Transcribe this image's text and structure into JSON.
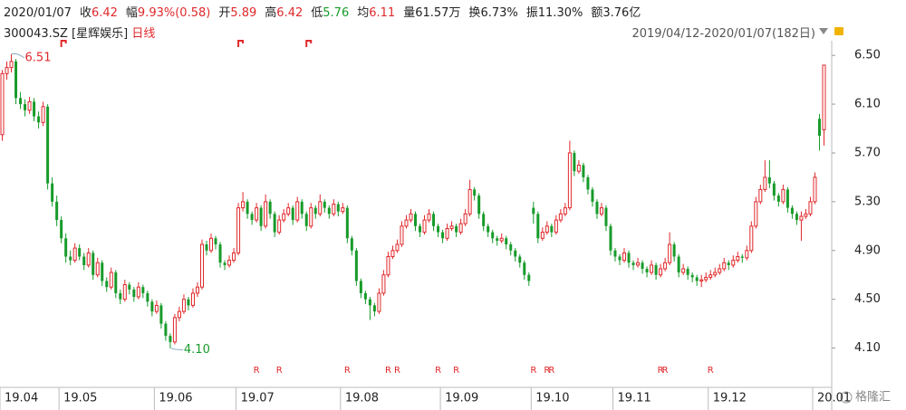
{
  "header": {
    "date": "2020/01/07",
    "fields": [
      {
        "label": "收",
        "value": "6.42",
        "color": "#e0282b"
      },
      {
        "label": "幅",
        "value": "9.93%(0.58)",
        "color": "#e0282b"
      },
      {
        "label": "开",
        "value": "5.89",
        "color": "#e0282b"
      },
      {
        "label": "高",
        "value": "6.42",
        "color": "#e0282b"
      },
      {
        "label": "低",
        "value": "5.76",
        "color": "#179b2a"
      },
      {
        "label": "均",
        "value": "6.11",
        "color": "#e0282b"
      },
      {
        "label": "量",
        "value": "61.57万",
        "color": "#222222"
      },
      {
        "label": "换",
        "value": "6.73%",
        "color": "#222222"
      },
      {
        "label": "振",
        "value": "11.30%",
        "color": "#222222"
      },
      {
        "label": "额",
        "value": "3.76亿",
        "color": "#222222"
      }
    ],
    "symbol": "300043.SZ [星辉娱乐]",
    "period": "日线",
    "range": "2019/04/12-2020/01/07(182日)",
    "watermark": "格隆汇"
  },
  "chart_data": {
    "type": "candlestick",
    "up_color": "#e0282b",
    "down_color": "#179b2a",
    "xlim": [
      0,
      182
    ],
    "ylim": [
      3.8,
      6.62
    ],
    "yticks": [
      {
        "value": 4.1,
        "label": "4.10"
      },
      {
        "value": 4.5,
        "label": "4.50"
      },
      {
        "value": 4.9,
        "label": "4.90"
      },
      {
        "value": 5.3,
        "label": "5.30"
      },
      {
        "value": 5.7,
        "label": "5.70"
      },
      {
        "value": 6.1,
        "label": "6.10"
      },
      {
        "value": 6.5,
        "label": "6.50"
      }
    ],
    "xticks": [
      {
        "value": 0,
        "label": "19.04"
      },
      {
        "value": 13,
        "label": "19.05"
      },
      {
        "value": 34,
        "label": "19.06"
      },
      {
        "value": 52,
        "label": "19.07"
      },
      {
        "value": 75,
        "label": "19.08"
      },
      {
        "value": 97,
        "label": "19.09"
      },
      {
        "value": 117,
        "label": "19.10"
      },
      {
        "value": 135,
        "label": "19.11"
      },
      {
        "value": 156,
        "label": "19.12"
      },
      {
        "value": 179,
        "label": "20.01"
      }
    ],
    "annotations": [
      {
        "index": 2,
        "value": 6.51,
        "label": "6.51"
      },
      {
        "index": 37,
        "value": 4.1,
        "label": "4.10"
      }
    ],
    "r_markers": [
      {
        "index": 56,
        "label": "R"
      },
      {
        "index": 61,
        "label": "R"
      },
      {
        "index": 76,
        "label": "R"
      },
      {
        "index": 85,
        "label": "R"
      },
      {
        "index": 87,
        "label": "R"
      },
      {
        "index": 96,
        "label": "R"
      },
      {
        "index": 100,
        "label": "R"
      },
      {
        "index": 117,
        "label": "R"
      },
      {
        "index": 120,
        "label": "R"
      },
      {
        "index": 121,
        "label": "R"
      },
      {
        "index": 145,
        "label": "R"
      },
      {
        "index": 146,
        "label": "R"
      },
      {
        "index": 156,
        "label": "R"
      }
    ],
    "flags": [
      13,
      52,
      67
    ],
    "ohlc": [
      [
        5.85,
        6.38,
        5.8,
        6.35
      ],
      [
        6.35,
        6.45,
        6.3,
        6.4
      ],
      [
        6.4,
        6.51,
        6.36,
        6.45
      ],
      [
        6.45,
        6.47,
        6.1,
        6.15
      ],
      [
        6.15,
        6.2,
        6.06,
        6.1
      ],
      [
        6.1,
        6.14,
        6.0,
        6.05
      ],
      [
        6.05,
        6.16,
        6.02,
        6.12
      ],
      [
        6.12,
        6.15,
        5.96,
        6.0
      ],
      [
        6.0,
        6.04,
        5.9,
        5.95
      ],
      [
        5.95,
        6.12,
        5.92,
        6.08
      ],
      [
        6.08,
        6.1,
        5.4,
        5.45
      ],
      [
        5.45,
        5.5,
        5.26,
        5.3
      ],
      [
        5.3,
        5.35,
        5.1,
        5.15
      ],
      [
        5.15,
        5.18,
        4.96,
        5.0
      ],
      [
        5.0,
        5.04,
        4.8,
        4.85
      ],
      [
        4.85,
        4.9,
        4.78,
        4.82
      ],
      [
        4.82,
        4.96,
        4.8,
        4.92
      ],
      [
        4.92,
        4.95,
        4.82,
        4.85
      ],
      [
        4.85,
        4.88,
        4.74,
        4.78
      ],
      [
        4.78,
        4.92,
        4.76,
        4.88
      ],
      [
        4.88,
        4.9,
        4.66,
        4.7
      ],
      [
        4.7,
        4.84,
        4.68,
        4.8
      ],
      [
        4.8,
        4.82,
        4.61,
        4.65
      ],
      [
        4.65,
        4.68,
        4.56,
        4.6
      ],
      [
        4.6,
        4.76,
        4.58,
        4.72
      ],
      [
        4.72,
        4.74,
        4.51,
        4.55
      ],
      [
        4.55,
        4.58,
        4.46,
        4.5
      ],
      [
        4.5,
        4.66,
        4.48,
        4.62
      ],
      [
        4.62,
        4.64,
        4.54,
        4.58
      ],
      [
        4.58,
        4.6,
        4.48,
        4.52
      ],
      [
        4.52,
        4.64,
        4.5,
        4.6
      ],
      [
        4.6,
        4.62,
        4.51,
        4.55
      ],
      [
        4.55,
        4.57,
        4.44,
        4.48
      ],
      [
        4.48,
        4.5,
        4.36,
        4.4
      ],
      [
        4.4,
        4.49,
        4.38,
        4.45
      ],
      [
        4.45,
        4.47,
        4.26,
        4.3
      ],
      [
        4.3,
        4.32,
        4.16,
        4.2
      ],
      [
        4.2,
        4.22,
        4.1,
        4.15
      ],
      [
        4.15,
        4.38,
        4.13,
        4.35
      ],
      [
        4.35,
        4.44,
        4.32,
        4.4
      ],
      [
        4.4,
        4.54,
        4.38,
        4.5
      ],
      [
        4.5,
        4.52,
        4.41,
        4.45
      ],
      [
        4.45,
        4.59,
        4.43,
        4.55
      ],
      [
        4.55,
        4.64,
        4.52,
        4.6
      ],
      [
        4.6,
        4.99,
        4.58,
        4.95
      ],
      [
        4.95,
        4.98,
        4.86,
        4.9
      ],
      [
        4.9,
        5.04,
        4.88,
        5.0
      ],
      [
        5.0,
        5.02,
        4.91,
        4.95
      ],
      [
        4.95,
        4.97,
        4.76,
        4.8
      ],
      [
        4.8,
        4.82,
        4.74,
        4.78
      ],
      [
        4.78,
        4.86,
        4.76,
        4.82
      ],
      [
        4.82,
        4.92,
        4.8,
        4.88
      ],
      [
        4.88,
        5.29,
        4.86,
        5.25
      ],
      [
        5.25,
        5.38,
        5.22,
        5.3
      ],
      [
        5.3,
        5.32,
        5.16,
        5.2
      ],
      [
        5.2,
        5.22,
        5.11,
        5.15
      ],
      [
        5.15,
        5.29,
        5.13,
        5.25
      ],
      [
        5.25,
        5.27,
        5.06,
        5.1
      ],
      [
        5.1,
        5.36,
        5.08,
        5.3
      ],
      [
        5.3,
        5.32,
        5.16,
        5.2
      ],
      [
        5.2,
        5.22,
        5.01,
        5.05
      ],
      [
        5.05,
        5.19,
        5.03,
        5.15
      ],
      [
        5.15,
        5.24,
        5.13,
        5.2
      ],
      [
        5.2,
        5.29,
        5.18,
        5.25
      ],
      [
        5.25,
        5.27,
        5.11,
        5.15
      ],
      [
        5.15,
        5.34,
        5.13,
        5.3
      ],
      [
        5.3,
        5.32,
        5.16,
        5.2
      ],
      [
        5.2,
        5.22,
        5.06,
        5.1
      ],
      [
        5.1,
        5.29,
        5.08,
        5.25
      ],
      [
        5.25,
        5.27,
        5.16,
        5.2
      ],
      [
        5.2,
        5.36,
        5.18,
        5.3
      ],
      [
        5.3,
        5.32,
        5.21,
        5.25
      ],
      [
        5.25,
        5.27,
        5.16,
        5.2
      ],
      [
        5.2,
        5.32,
        5.18,
        5.28
      ],
      [
        5.28,
        5.3,
        5.18,
        5.22
      ],
      [
        5.22,
        5.29,
        5.2,
        5.25
      ],
      [
        5.25,
        5.27,
        4.96,
        5.0
      ],
      [
        5.0,
        5.02,
        4.86,
        4.9
      ],
      [
        4.9,
        4.92,
        4.61,
        4.65
      ],
      [
        4.65,
        4.67,
        4.51,
        4.55
      ],
      [
        4.55,
        4.57,
        4.46,
        4.5
      ],
      [
        4.5,
        4.52,
        4.33,
        4.45
      ],
      [
        4.45,
        4.47,
        4.36,
        4.4
      ],
      [
        4.4,
        4.59,
        4.38,
        4.55
      ],
      [
        4.55,
        4.74,
        4.53,
        4.7
      ],
      [
        4.7,
        4.89,
        4.68,
        4.85
      ],
      [
        4.85,
        4.94,
        4.83,
        4.9
      ],
      [
        4.9,
        4.99,
        4.88,
        4.95
      ],
      [
        4.95,
        5.14,
        4.93,
        5.1
      ],
      [
        5.1,
        5.19,
        5.08,
        5.15
      ],
      [
        5.15,
        5.24,
        5.13,
        5.2
      ],
      [
        5.2,
        5.22,
        5.06,
        5.1
      ],
      [
        5.1,
        5.12,
        5.01,
        5.05
      ],
      [
        5.05,
        5.19,
        5.03,
        5.15
      ],
      [
        5.15,
        5.24,
        5.13,
        5.2
      ],
      [
        5.2,
        5.22,
        5.06,
        5.1
      ],
      [
        5.1,
        5.12,
        5.01,
        5.05
      ],
      [
        5.05,
        5.07,
        4.96,
        5.0
      ],
      [
        5.0,
        5.12,
        4.98,
        5.08
      ],
      [
        5.08,
        5.14,
        5.06,
        5.1
      ],
      [
        5.1,
        5.12,
        5.01,
        5.05
      ],
      [
        5.05,
        5.16,
        5.03,
        5.12
      ],
      [
        5.12,
        5.24,
        5.1,
        5.2
      ],
      [
        5.2,
        5.48,
        5.18,
        5.4
      ],
      [
        5.4,
        5.42,
        5.31,
        5.35
      ],
      [
        5.35,
        5.37,
        5.16,
        5.2
      ],
      [
        5.2,
        5.22,
        5.06,
        5.1
      ],
      [
        5.1,
        5.12,
        5.01,
        5.05
      ],
      [
        5.05,
        5.07,
        4.96,
        5.0
      ],
      [
        5.0,
        5.02,
        4.94,
        4.98
      ],
      [
        4.98,
        5.04,
        4.96,
        5.0
      ],
      [
        5.0,
        5.02,
        4.91,
        4.95
      ],
      [
        4.95,
        4.97,
        4.86,
        4.9
      ],
      [
        4.9,
        4.92,
        4.81,
        4.85
      ],
      [
        4.85,
        4.87,
        4.76,
        4.8
      ],
      [
        4.8,
        4.82,
        4.66,
        4.7
      ],
      [
        4.7,
        4.72,
        4.61,
        4.65
      ],
      [
        5.25,
        5.3,
        5.12,
        5.2
      ],
      [
        5.2,
        5.22,
        4.96,
        5.0
      ],
      [
        5.0,
        5.09,
        4.98,
        5.05
      ],
      [
        5.05,
        5.14,
        5.03,
        5.1
      ],
      [
        5.1,
        5.12,
        5.01,
        5.05
      ],
      [
        5.05,
        5.19,
        5.03,
        5.15
      ],
      [
        5.15,
        5.24,
        5.13,
        5.2
      ],
      [
        5.2,
        5.29,
        5.18,
        5.25
      ],
      [
        5.25,
        5.8,
        5.23,
        5.7
      ],
      [
        5.7,
        5.72,
        5.51,
        5.55
      ],
      [
        5.55,
        5.64,
        5.53,
        5.6
      ],
      [
        5.6,
        5.62,
        5.46,
        5.5
      ],
      [
        5.5,
        5.52,
        5.36,
        5.4
      ],
      [
        5.4,
        5.42,
        5.26,
        5.3
      ],
      [
        5.3,
        5.32,
        5.16,
        5.2
      ],
      [
        5.2,
        5.29,
        5.18,
        5.25
      ],
      [
        5.25,
        5.27,
        5.06,
        5.1
      ],
      [
        5.1,
        5.12,
        4.86,
        4.9
      ],
      [
        4.9,
        4.92,
        4.81,
        4.85
      ],
      [
        4.85,
        4.87,
        4.78,
        4.82
      ],
      [
        4.82,
        4.92,
        4.8,
        4.88
      ],
      [
        4.88,
        4.9,
        4.76,
        4.8
      ],
      [
        4.8,
        4.82,
        4.74,
        4.78
      ],
      [
        4.78,
        4.84,
        4.76,
        4.8
      ],
      [
        4.8,
        4.82,
        4.71,
        4.75
      ],
      [
        4.75,
        4.77,
        4.68,
        4.72
      ],
      [
        4.72,
        4.82,
        4.7,
        4.78
      ],
      [
        4.78,
        4.8,
        4.66,
        4.7
      ],
      [
        4.7,
        4.79,
        4.68,
        4.75
      ],
      [
        4.75,
        4.84,
        4.73,
        4.8
      ],
      [
        4.8,
        5.05,
        4.78,
        4.95
      ],
      [
        4.95,
        4.97,
        4.81,
        4.85
      ],
      [
        4.85,
        4.87,
        4.68,
        4.72
      ],
      [
        4.72,
        4.79,
        4.7,
        4.75
      ],
      [
        4.75,
        4.77,
        4.66,
        4.7
      ],
      [
        4.7,
        4.72,
        4.64,
        4.68
      ],
      [
        4.68,
        4.7,
        4.61,
        4.65
      ],
      [
        4.65,
        4.7,
        4.6,
        4.66
      ],
      [
        4.66,
        4.72,
        4.64,
        4.68
      ],
      [
        4.68,
        4.74,
        4.66,
        4.7
      ],
      [
        4.7,
        4.76,
        4.68,
        4.72
      ],
      [
        4.72,
        4.79,
        4.7,
        4.75
      ],
      [
        4.75,
        4.84,
        4.73,
        4.8
      ],
      [
        4.8,
        4.82,
        4.74,
        4.78
      ],
      [
        4.78,
        4.86,
        4.76,
        4.82
      ],
      [
        4.82,
        4.89,
        4.8,
        4.85
      ],
      [
        4.85,
        4.87,
        4.8,
        4.84
      ],
      [
        4.84,
        4.94,
        4.82,
        4.9
      ],
      [
        4.9,
        5.14,
        4.88,
        5.1
      ],
      [
        5.1,
        5.34,
        5.08,
        5.3
      ],
      [
        5.3,
        5.44,
        5.28,
        5.4
      ],
      [
        5.4,
        5.64,
        5.38,
        5.5
      ],
      [
        5.5,
        5.64,
        5.41,
        5.45
      ],
      [
        5.45,
        5.47,
        5.31,
        5.35
      ],
      [
        5.35,
        5.37,
        5.26,
        5.3
      ],
      [
        5.3,
        5.44,
        5.28,
        5.4
      ],
      [
        5.4,
        5.42,
        5.21,
        5.25
      ],
      [
        5.25,
        5.27,
        5.16,
        5.2
      ],
      [
        5.2,
        5.22,
        5.11,
        5.15
      ],
      [
        5.15,
        5.22,
        4.98,
        5.18
      ],
      [
        5.18,
        5.24,
        5.16,
        5.2
      ],
      [
        5.2,
        5.34,
        5.18,
        5.3
      ],
      [
        5.3,
        5.54,
        5.28,
        5.5
      ],
      [
        5.98,
        6.02,
        5.72,
        5.84
      ],
      [
        5.89,
        6.42,
        5.76,
        6.42
      ]
    ]
  }
}
